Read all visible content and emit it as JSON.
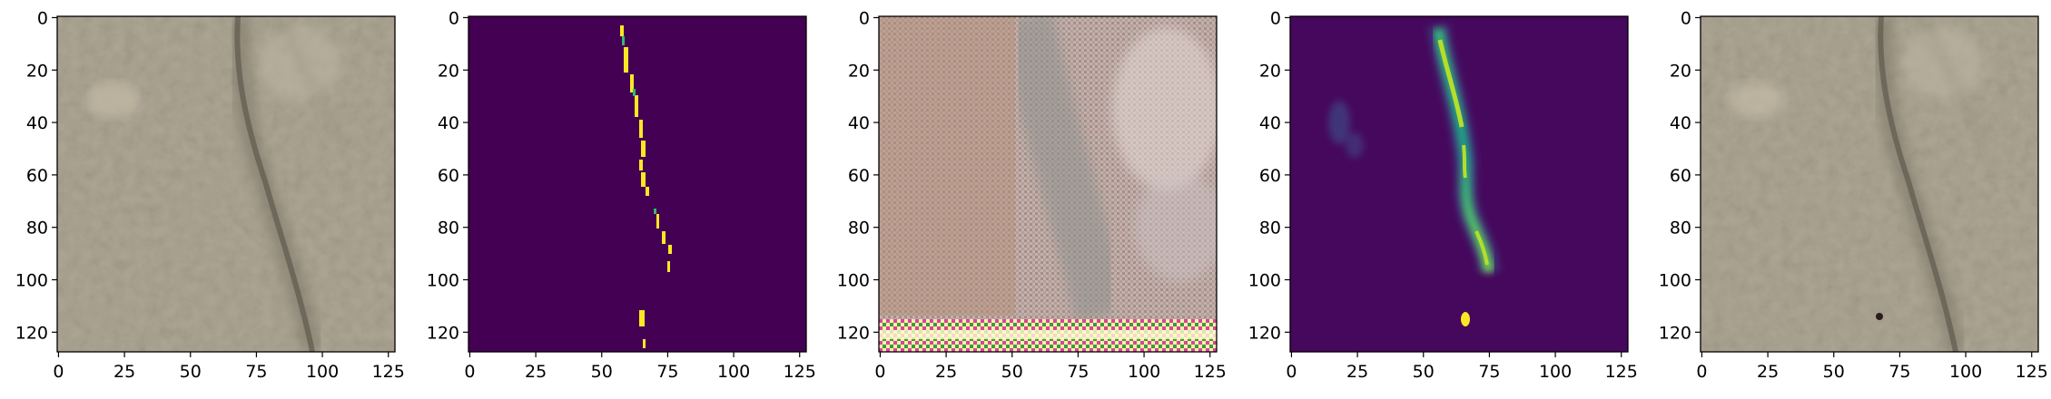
{
  "figure": {
    "panel_count": 5,
    "x_ticks": [
      "0",
      "25",
      "50",
      "75",
      "100",
      "125"
    ],
    "y_ticks": [
      "0",
      "20",
      "40",
      "60",
      "80",
      "100",
      "120"
    ],
    "panels": [
      {
        "name": "panel-1",
        "content": "concrete crack photo"
      },
      {
        "name": "panel-2",
        "content": "binary crack mask"
      },
      {
        "name": "panel-3",
        "content": "noisy reconstruction"
      },
      {
        "name": "panel-4",
        "content": "predicted crack heatmap"
      },
      {
        "name": "panel-5",
        "content": "concrete crack photo"
      }
    ]
  },
  "colors": {
    "concrete": "#aea694",
    "crack_dark": "#6f6a5e",
    "mask_bg": "#440154",
    "mask_fg": "#fde725",
    "heat_bg": "#46085c",
    "heat_mid": "#21918c",
    "heat_hi": "#b5de2b"
  }
}
